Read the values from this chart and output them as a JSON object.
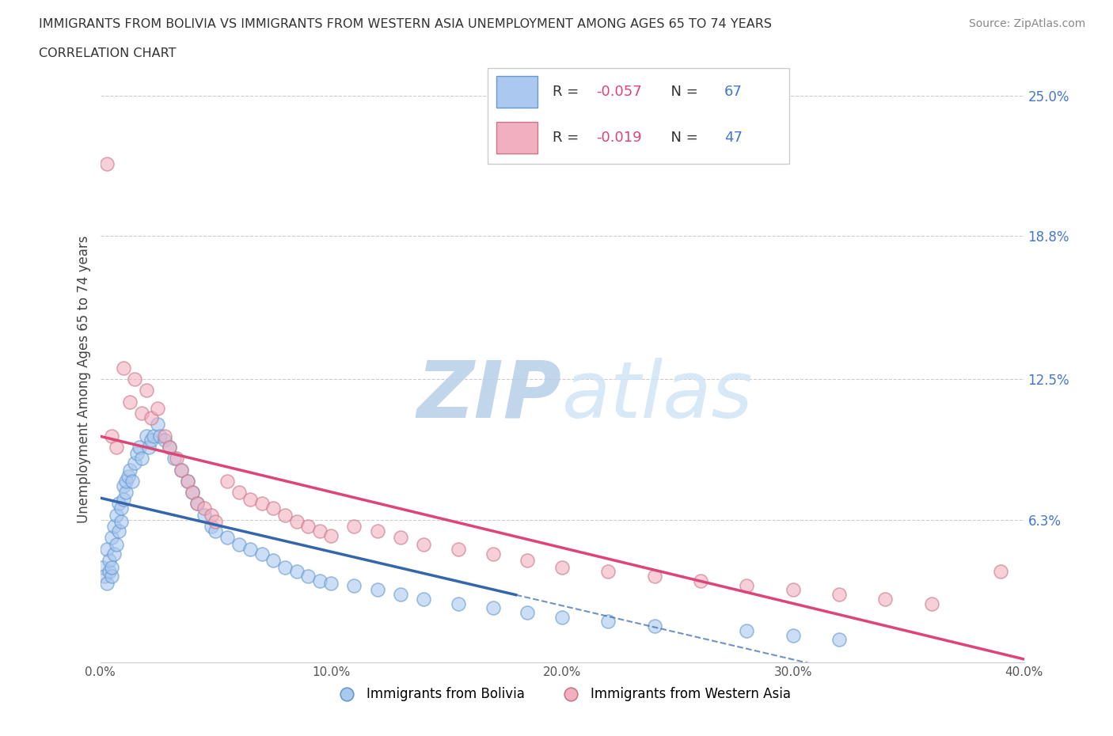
{
  "title_line1": "IMMIGRANTS FROM BOLIVIA VS IMMIGRANTS FROM WESTERN ASIA UNEMPLOYMENT AMONG AGES 65 TO 74 YEARS",
  "title_line2": "CORRELATION CHART",
  "source_text": "Source: ZipAtlas.com",
  "ylabel": "Unemployment Among Ages 65 to 74 years",
  "xlim": [
    0.0,
    0.4
  ],
  "ylim": [
    0.0,
    0.25
  ],
  "xtick_labels": [
    "0.0%",
    "10.0%",
    "20.0%",
    "30.0%",
    "40.0%"
  ],
  "xtick_values": [
    0.0,
    0.1,
    0.2,
    0.3,
    0.4
  ],
  "ytick_right_labels": [
    "6.3%",
    "12.5%",
    "18.8%",
    "25.0%"
  ],
  "ytick_right_values": [
    0.063,
    0.125,
    0.188,
    0.25
  ],
  "grid_color": "#cccccc",
  "bolivia_fill_color": "#aac8f0",
  "bolivia_edge_color": "#6699cc",
  "western_asia_fill_color": "#f0b0c0",
  "western_asia_edge_color": "#cc7788",
  "bolivia_R": -0.057,
  "bolivia_N": 67,
  "western_asia_R": -0.019,
  "western_asia_N": 47,
  "bolivia_trend_color": "#3366aa",
  "western_asia_trend_color": "#dd4477",
  "watermark_color": "#d5e8f8",
  "legend_label_bolivia": "Immigrants from Bolivia",
  "legend_label_western_asia": "Immigrants from Western Asia",
  "bolivia_x": [
    0.001,
    0.002,
    0.003,
    0.003,
    0.004,
    0.004,
    0.005,
    0.005,
    0.005,
    0.006,
    0.006,
    0.007,
    0.007,
    0.008,
    0.008,
    0.009,
    0.009,
    0.01,
    0.01,
    0.011,
    0.011,
    0.012,
    0.013,
    0.014,
    0.015,
    0.016,
    0.017,
    0.018,
    0.02,
    0.021,
    0.022,
    0.023,
    0.025,
    0.026,
    0.028,
    0.03,
    0.032,
    0.035,
    0.038,
    0.04,
    0.042,
    0.045,
    0.048,
    0.05,
    0.055,
    0.06,
    0.065,
    0.07,
    0.075,
    0.08,
    0.085,
    0.09,
    0.095,
    0.1,
    0.11,
    0.12,
    0.13,
    0.14,
    0.155,
    0.17,
    0.185,
    0.2,
    0.22,
    0.24,
    0.28,
    0.3,
    0.32
  ],
  "bolivia_y": [
    0.042,
    0.038,
    0.035,
    0.05,
    0.04,
    0.045,
    0.038,
    0.042,
    0.055,
    0.048,
    0.06,
    0.052,
    0.065,
    0.058,
    0.07,
    0.062,
    0.068,
    0.072,
    0.078,
    0.075,
    0.08,
    0.082,
    0.085,
    0.08,
    0.088,
    0.092,
    0.095,
    0.09,
    0.1,
    0.095,
    0.098,
    0.1,
    0.105,
    0.1,
    0.098,
    0.095,
    0.09,
    0.085,
    0.08,
    0.075,
    0.07,
    0.065,
    0.06,
    0.058,
    0.055,
    0.052,
    0.05,
    0.048,
    0.045,
    0.042,
    0.04,
    0.038,
    0.036,
    0.035,
    0.034,
    0.032,
    0.03,
    0.028,
    0.026,
    0.024,
    0.022,
    0.02,
    0.018,
    0.016,
    0.014,
    0.012,
    0.01
  ],
  "western_asia_x": [
    0.003,
    0.005,
    0.007,
    0.01,
    0.013,
    0.015,
    0.018,
    0.02,
    0.022,
    0.025,
    0.028,
    0.03,
    0.033,
    0.035,
    0.038,
    0.04,
    0.042,
    0.045,
    0.048,
    0.05,
    0.055,
    0.06,
    0.065,
    0.07,
    0.075,
    0.08,
    0.085,
    0.09,
    0.095,
    0.1,
    0.11,
    0.12,
    0.13,
    0.14,
    0.155,
    0.17,
    0.185,
    0.2,
    0.22,
    0.24,
    0.26,
    0.28,
    0.3,
    0.32,
    0.34,
    0.36,
    0.39
  ],
  "western_asia_y": [
    0.22,
    0.1,
    0.095,
    0.13,
    0.115,
    0.125,
    0.11,
    0.12,
    0.108,
    0.112,
    0.1,
    0.095,
    0.09,
    0.085,
    0.08,
    0.075,
    0.07,
    0.068,
    0.065,
    0.062,
    0.08,
    0.075,
    0.072,
    0.07,
    0.068,
    0.065,
    0.062,
    0.06,
    0.058,
    0.056,
    0.06,
    0.058,
    0.055,
    0.052,
    0.05,
    0.048,
    0.045,
    0.042,
    0.04,
    0.038,
    0.036,
    0.034,
    0.032,
    0.03,
    0.028,
    0.026,
    0.04
  ]
}
